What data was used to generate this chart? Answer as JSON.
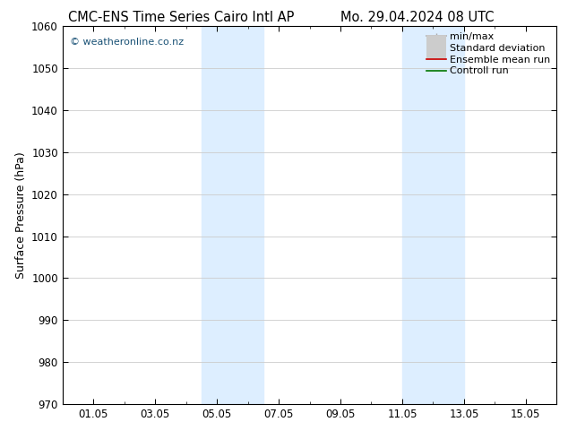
{
  "title_left": "CMC-ENS Time Series Cairo Intl AP",
  "title_right": "Mo. 29.04.2024 08 UTC",
  "ylabel": "Surface Pressure (hPa)",
  "ylim": [
    970,
    1060
  ],
  "yticks": [
    970,
    980,
    990,
    1000,
    1010,
    1020,
    1030,
    1040,
    1050,
    1060
  ],
  "xtick_positions": [
    1.0,
    3.0,
    5.0,
    7.0,
    9.0,
    11.0,
    13.0,
    15.0
  ],
  "xtick_labels": [
    "01.05",
    "03.05",
    "05.05",
    "07.05",
    "09.05",
    "11.05",
    "13.05",
    "15.05"
  ],
  "xlim_start": 0.0,
  "xlim_end": 16.0,
  "shaded_bands": [
    {
      "x_start": 4.5,
      "x_end": 6.5
    },
    {
      "x_start": 11.0,
      "x_end": 13.0
    }
  ],
  "shaded_color": "#ddeeff",
  "background_color": "#ffffff",
  "watermark_text": "© weatheronline.co.nz",
  "watermark_color": "#1a5276",
  "legend_entries": [
    {
      "label": "min/max",
      "color": "#aaaaaa",
      "lw": 1.2,
      "style": "line_with_caps"
    },
    {
      "label": "Standard deviation",
      "color": "#cccccc",
      "lw": 5,
      "style": "thick_line"
    },
    {
      "label": "Ensemble mean run",
      "color": "#cc0000",
      "lw": 1.2,
      "style": "line"
    },
    {
      "label": "Controll run",
      "color": "#007700",
      "lw": 1.2,
      "style": "line"
    }
  ],
  "grid_color": "#cccccc",
  "tick_color": "#000000",
  "font_color": "#000000",
  "title_fontsize": 10.5,
  "label_fontsize": 9,
  "tick_fontsize": 8.5,
  "watermark_fontsize": 8,
  "legend_fontsize": 8
}
